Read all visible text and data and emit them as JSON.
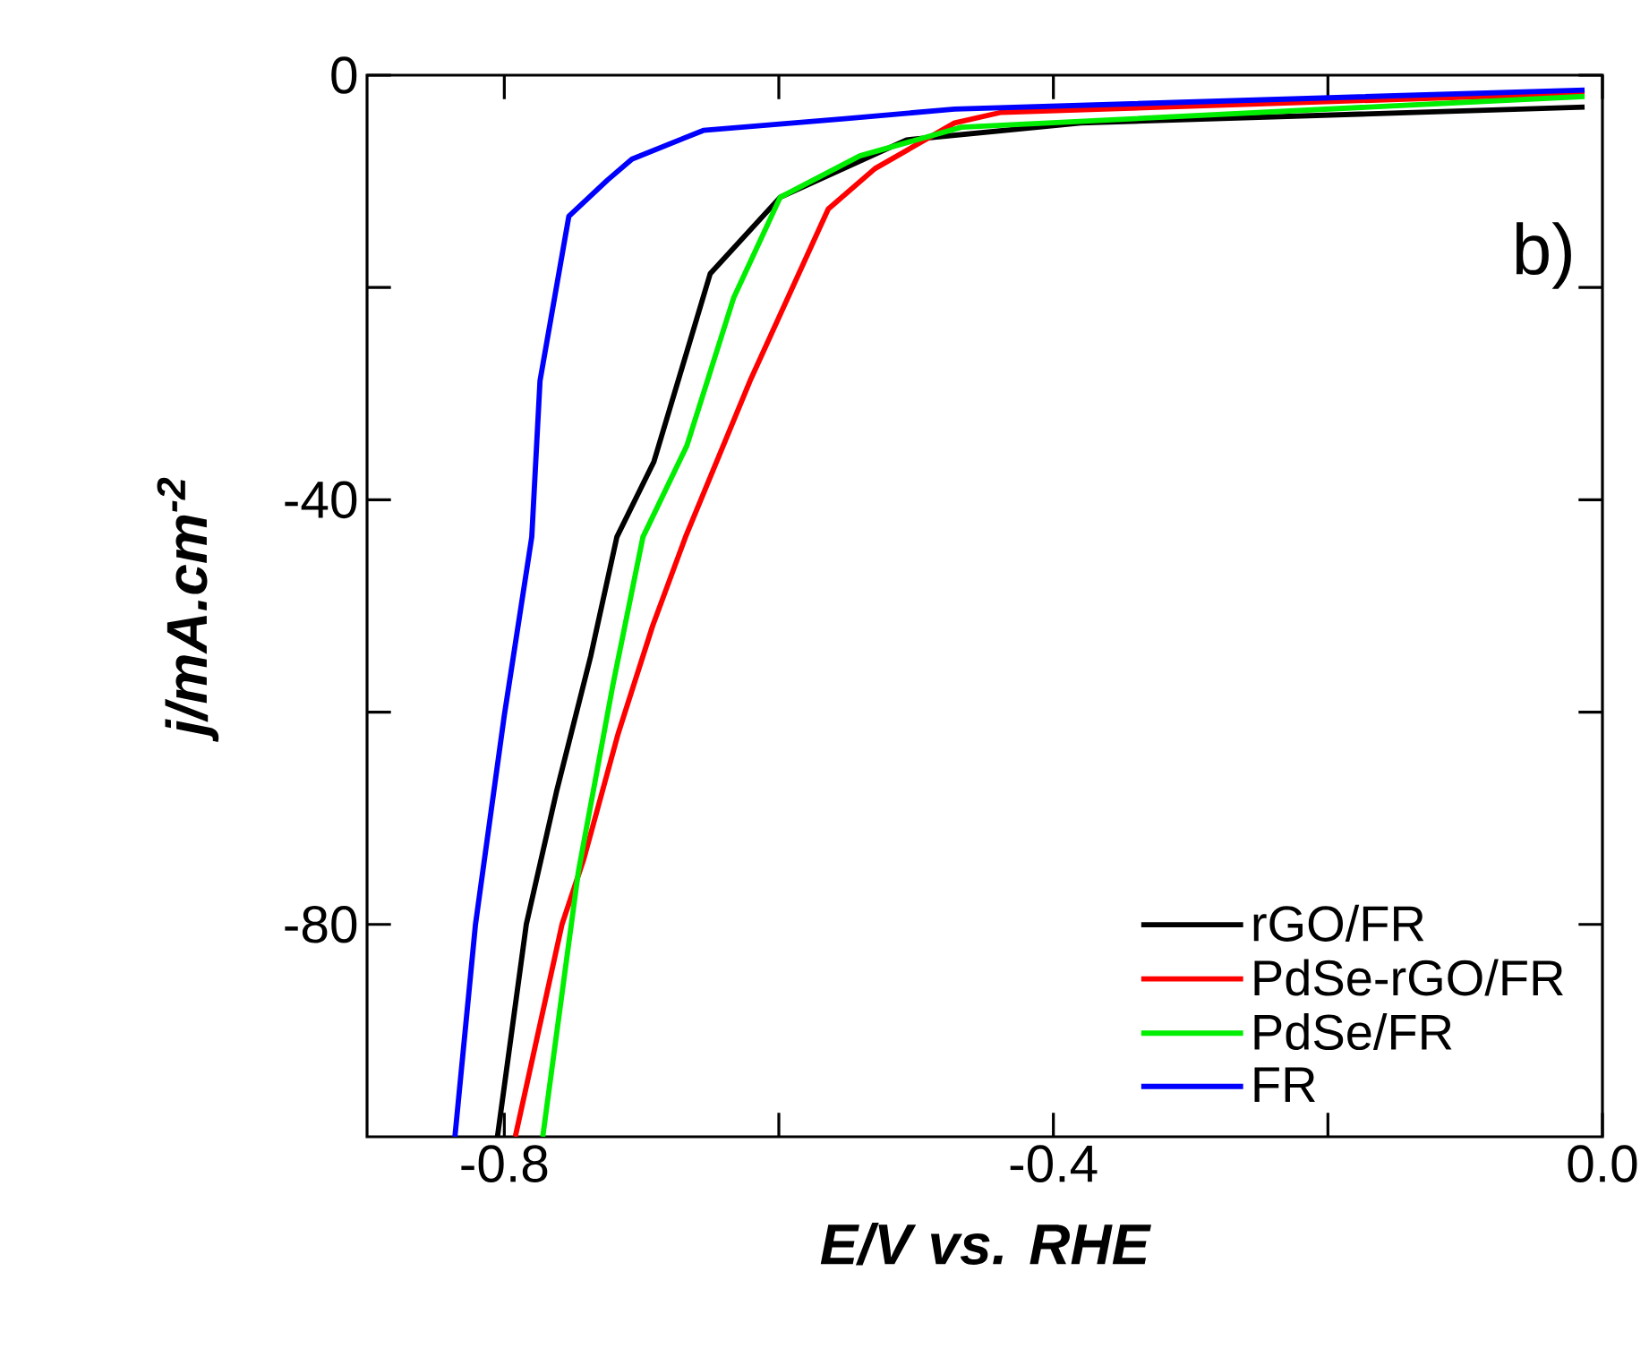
{
  "chart_data": {
    "type": "line",
    "xlabel": "E/V vs. RHE",
    "ylabel": "*j/mA.cm$^{-2}$*",
    "xlim": [
      -0.9,
      0
    ],
    "ylim": [
      -100,
      0
    ],
    "xticks": [
      -0.8,
      {
        "value": -0.6,
        "label": null
      },
      -0.4,
      {
        "value": -0.2,
        "label": null
      },
      {
        "value": 0,
        "label": "0.0"
      }
    ],
    "yticks": [
      -80,
      {
        "value": -60,
        "label": null
      },
      -40,
      {
        "value": -20,
        "label": null
      },
      0
    ],
    "legend": "bottom right",
    "annotations": [
      "b)"
    ],
    "series": [
      {
        "name": "rGO/FR",
        "color": "#000000",
        "x": [
          -0.805,
          -0.784,
          -0.762,
          -0.737,
          -0.718,
          -0.691,
          -0.65,
          -0.599,
          -0.507,
          -0.38,
          -0.013
        ],
        "values": [
          -100,
          -80,
          -67.5,
          -54.7,
          -43.5,
          -36.4,
          -18.7,
          -11.5,
          -6.1,
          -4.5,
          -3.0
        ]
      },
      {
        "name": "PdSe-rGO/FR",
        "color": "#ff0000",
        "x": [
          -0.792,
          -0.758,
          -0.742,
          -0.717,
          -0.692,
          -0.668,
          -0.621,
          -0.564,
          -0.53,
          -0.472,
          -0.438,
          -0.013
        ],
        "values": [
          -100,
          -80,
          -73.8,
          -62,
          -51.9,
          -43.5,
          -28.8,
          -12.6,
          -8.8,
          -4.5,
          -3.5,
          -1.7
        ]
      },
      {
        "name": "PdSe/FR",
        "color": "#00ee00",
        "x": [
          -0.772,
          -0.746,
          -0.721,
          -0.699,
          -0.667,
          -0.633,
          -0.599,
          -0.541,
          -0.467,
          -0.013
        ],
        "values": [
          -100,
          -75,
          -57.5,
          -43.5,
          -34.9,
          -21,
          -11.5,
          -7.6,
          -4.9,
          -2.0
        ]
      },
      {
        "name": "FR",
        "color": "#0000ff",
        "x": [
          -0.836,
          -0.821,
          -0.8,
          -0.78,
          -0.774,
          -0.753,
          -0.725,
          -0.707,
          -0.655,
          -0.552,
          -0.472,
          -0.013
        ],
        "values": [
          -100,
          -80,
          -60.3,
          -43.5,
          -28.8,
          -13.3,
          -9.9,
          -7.9,
          -5.2,
          -4.1,
          -3.2,
          -1.4
        ]
      }
    ]
  }
}
